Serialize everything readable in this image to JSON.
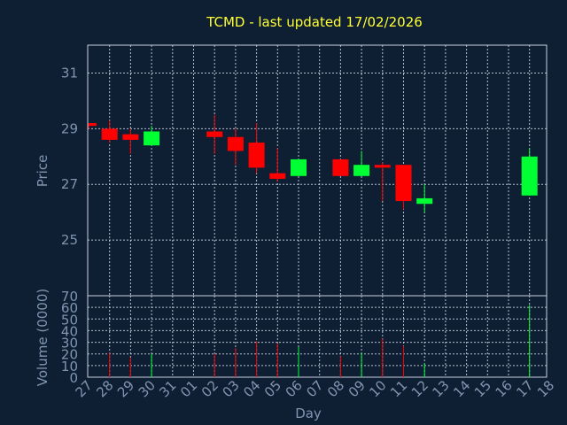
{
  "chart_data": {
    "type": "candlestick",
    "title": "TCMD - last updated 17/02/2026",
    "xlabel": "Day",
    "price_ylabel": "Price",
    "volume_ylabel": "Volume (0000)",
    "x_ticks": [
      "27",
      "28",
      "29",
      "30",
      "31",
      "01",
      "02",
      "03",
      "04",
      "05",
      "06",
      "07",
      "08",
      "09",
      "10",
      "11",
      "12",
      "13",
      "14",
      "15",
      "16",
      "17",
      "18"
    ],
    "price_ylim": [
      23.0,
      32.0
    ],
    "price_ticks": [
      25,
      27,
      29,
      31
    ],
    "volume_ylim": [
      0,
      70
    ],
    "volume_ticks": [
      0,
      10,
      20,
      30,
      40,
      50,
      60,
      70
    ],
    "colors": {
      "up": "#00ff33",
      "down": "#ff0000",
      "title": "#ffff33",
      "axis": "#7f95b0",
      "grid": "#c8d2e0",
      "background": "#0f1f33"
    },
    "candles": [
      {
        "x": 0,
        "open": 29.2,
        "close": 29.1,
        "high": 29.2,
        "low": 29.0,
        "volume": 0
      },
      {
        "x": 1,
        "open": 29.0,
        "close": 28.6,
        "high": 29.3,
        "low": 28.5,
        "volume": 21
      },
      {
        "x": 2,
        "open": 28.8,
        "close": 28.6,
        "high": 29.0,
        "low": 28.1,
        "volume": 17
      },
      {
        "x": 3,
        "open": 28.4,
        "close": 28.9,
        "high": 29.1,
        "low": 28.4,
        "volume": 20
      },
      {
        "x": 6,
        "open": 28.9,
        "close": 28.7,
        "high": 29.5,
        "low": 28.1,
        "volume": 20
      },
      {
        "x": 7,
        "open": 28.7,
        "close": 28.2,
        "high": 29.0,
        "low": 27.7,
        "volume": 25
      },
      {
        "x": 8,
        "open": 28.5,
        "close": 27.6,
        "high": 29.2,
        "low": 27.4,
        "volume": 31
      },
      {
        "x": 9,
        "open": 27.4,
        "close": 27.2,
        "high": 28.3,
        "low": 27.1,
        "volume": 29
      },
      {
        "x": 10,
        "open": 27.3,
        "close": 27.9,
        "high": 27.9,
        "low": 27.3,
        "volume": 26
      },
      {
        "x": 12,
        "open": 27.9,
        "close": 27.3,
        "high": 27.9,
        "low": 27.3,
        "volume": 18
      },
      {
        "x": 13,
        "open": 27.3,
        "close": 27.7,
        "high": 28.2,
        "low": 27.3,
        "volume": 21
      },
      {
        "x": 14,
        "open": 27.7,
        "close": 27.6,
        "high": 27.8,
        "low": 26.4,
        "volume": 33
      },
      {
        "x": 15,
        "open": 27.7,
        "close": 26.4,
        "high": 27.7,
        "low": 26.1,
        "volume": 27
      },
      {
        "x": 16,
        "open": 26.3,
        "close": 26.5,
        "high": 27.0,
        "low": 26.0,
        "volume": 12
      },
      {
        "x": 21,
        "open": 26.6,
        "close": 28.0,
        "high": 28.3,
        "low": 26.6,
        "volume": 62
      }
    ]
  }
}
